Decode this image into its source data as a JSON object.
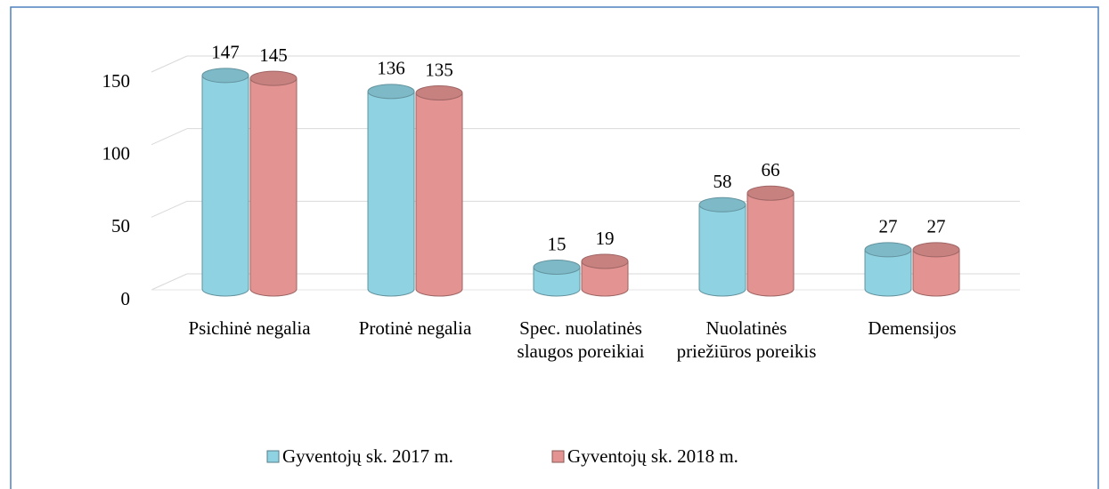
{
  "chart_data": {
    "type": "bar3d",
    "categories": [
      "Psichinė negalia",
      "Protinė negalia",
      "Spec. nuolatinės slaugos poreikiai",
      "Nuolatinės priežiūros poreikis",
      "Demensijos"
    ],
    "series": [
      {
        "name": "Gyventojų sk. 2017 m.",
        "color": "#8fd3e3",
        "values": [
          147,
          136,
          15,
          58,
          27
        ]
      },
      {
        "name": "Gyventojų sk. 2018 m.",
        "color": "#e39391",
        "values": [
          145,
          135,
          19,
          66,
          27
        ]
      }
    ],
    "ylim": [
      0,
      150
    ],
    "yticks": [
      0,
      50,
      100,
      150
    ],
    "grid": true,
    "legend": "bottom"
  }
}
